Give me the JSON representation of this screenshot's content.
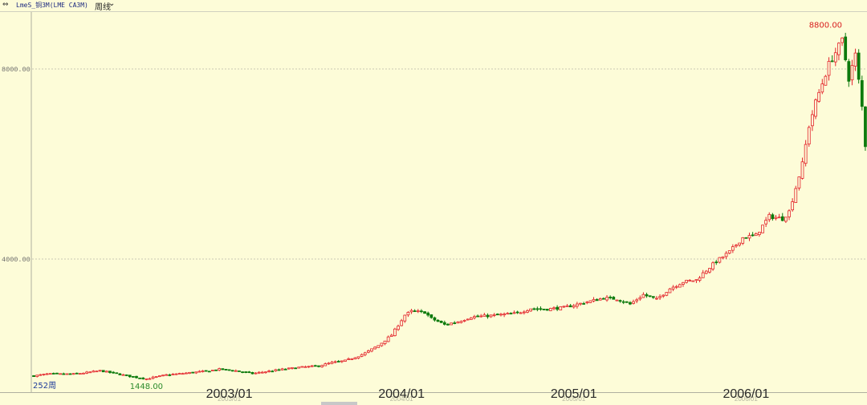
{
  "header": {
    "icon": "⇔",
    "title": "LmeS_铜3M(LME CA3M)",
    "period": "周线",
    "period_icon": "chevron-down-icon"
  },
  "chart_data": {
    "type": "candlestick",
    "ylim": [
      1300,
      8850
    ],
    "yticks": [
      {
        "value": 8000,
        "label": "8000.00"
      },
      {
        "value": 4000,
        "label": "4000.00"
      }
    ],
    "xlabels": [
      {
        "label": "2003/01",
        "index": 59
      },
      {
        "label": "2004/01",
        "index": 111
      },
      {
        "label": "2005/01",
        "index": 163
      },
      {
        "label": "2006/01",
        "index": 215
      }
    ],
    "ghost_labels": [
      {
        "label": "2003/01",
        "index": 59
      },
      {
        "label": "2004/01",
        "index": 111
      },
      {
        "label": "2005/01",
        "index": 163
      },
      {
        "label": "2006/01",
        "index": 215
      }
    ],
    "count": 252,
    "count_label": "252周",
    "max_label": "8800.00",
    "min_label": "1448.00",
    "max_value": 8800,
    "min_value": 1448,
    "max_index": 244,
    "min_index": 34,
    "anchors": [
      [
        0,
        1540
      ],
      [
        4,
        1580
      ],
      [
        12,
        1580
      ],
      [
        16,
        1610
      ],
      [
        20,
        1650
      ],
      [
        24,
        1600
      ],
      [
        30,
        1520
      ],
      [
        34,
        1480
      ],
      [
        40,
        1560
      ],
      [
        46,
        1600
      ],
      [
        52,
        1640
      ],
      [
        56,
        1680
      ],
      [
        60,
        1660
      ],
      [
        66,
        1590
      ],
      [
        74,
        1670
      ],
      [
        80,
        1720
      ],
      [
        86,
        1750
      ],
      [
        90,
        1820
      ],
      [
        94,
        1860
      ],
      [
        98,
        1960
      ],
      [
        100,
        2020
      ],
      [
        104,
        2180
      ],
      [
        108,
        2400
      ],
      [
        112,
        2820
      ],
      [
        114,
        2900
      ],
      [
        118,
        2880
      ],
      [
        120,
        2750
      ],
      [
        124,
        2620
      ],
      [
        128,
        2680
      ],
      [
        132,
        2780
      ],
      [
        140,
        2820
      ],
      [
        146,
        2860
      ],
      [
        150,
        2960
      ],
      [
        154,
        2940
      ],
      [
        160,
        2980
      ],
      [
        166,
        3080
      ],
      [
        172,
        3180
      ],
      [
        176,
        3160
      ],
      [
        180,
        3050
      ],
      [
        184,
        3250
      ],
      [
        188,
        3150
      ],
      [
        192,
        3380
      ],
      [
        196,
        3520
      ],
      [
        200,
        3560
      ],
      [
        202,
        3700
      ],
      [
        206,
        3950
      ],
      [
        210,
        4150
      ],
      [
        214,
        4450
      ],
      [
        218,
        4500
      ],
      [
        222,
        4900
      ],
      [
        226,
        4850
      ],
      [
        228,
        5000
      ],
      [
        230,
        5500
      ],
      [
        232,
        6000
      ],
      [
        234,
        6800
      ],
      [
        236,
        7300
      ],
      [
        238,
        7700
      ],
      [
        240,
        8100
      ],
      [
        244,
        8600
      ],
      [
        246,
        7800
      ],
      [
        248,
        8300
      ],
      [
        250,
        7200
      ],
      [
        251,
        6400
      ]
    ],
    "up_color": "#e3242b",
    "down_color": "#0d7a0d",
    "grid": "horizontal-dashed"
  }
}
